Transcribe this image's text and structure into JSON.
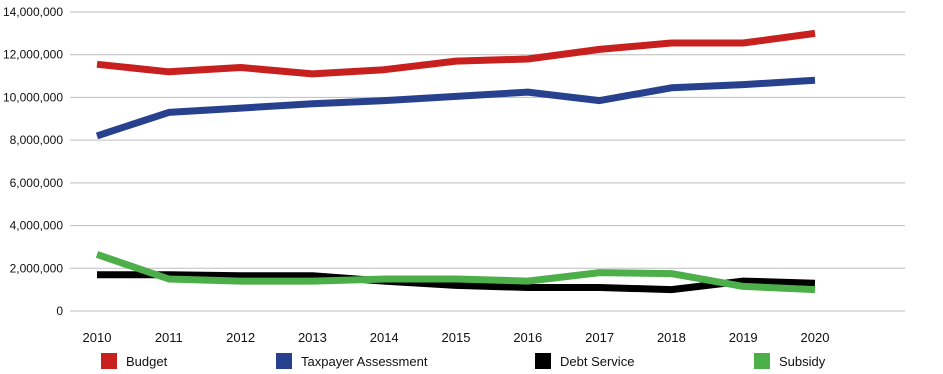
{
  "chart_data": {
    "type": "line",
    "title": "",
    "xlabel": "",
    "ylabel": "",
    "categories": [
      "2010",
      "2011",
      "2012",
      "2013",
      "2014",
      "2015",
      "2016",
      "2017",
      "2018",
      "2019",
      "2020"
    ],
    "ylim": [
      0,
      14000000
    ],
    "yticks": [
      0,
      2000000,
      4000000,
      6000000,
      8000000,
      10000000,
      12000000,
      14000000
    ],
    "ytick_labels": [
      "0",
      "2,000,000",
      "4,000,000",
      "6,000,000",
      "8,000,000",
      "10,000,000",
      "12,000,000",
      "14,000,000"
    ],
    "grid": true,
    "legend_position": "bottom",
    "series": [
      {
        "name": "Budget",
        "color": "#c8201e",
        "values": [
          11550000,
          11200000,
          11400000,
          11100000,
          11300000,
          11700000,
          11800000,
          12250000,
          12550000,
          12550000,
          13000000
        ]
      },
      {
        "name": "Taxpayer Assessment",
        "color": "#27418f",
        "values": [
          8200000,
          9300000,
          9500000,
          9700000,
          9850000,
          10050000,
          10250000,
          9850000,
          10450000,
          10600000,
          10800000
        ]
      },
      {
        "name": "Debt Service",
        "color": "#000000",
        "values": [
          1700000,
          1700000,
          1650000,
          1650000,
          1400000,
          1200000,
          1100000,
          1100000,
          1000000,
          1400000,
          1300000
        ]
      },
      {
        "name": "Subsidy",
        "color": "#4caf49",
        "values": [
          2650000,
          1500000,
          1400000,
          1400000,
          1500000,
          1500000,
          1400000,
          1800000,
          1750000,
          1150000,
          1000000
        ]
      }
    ]
  }
}
